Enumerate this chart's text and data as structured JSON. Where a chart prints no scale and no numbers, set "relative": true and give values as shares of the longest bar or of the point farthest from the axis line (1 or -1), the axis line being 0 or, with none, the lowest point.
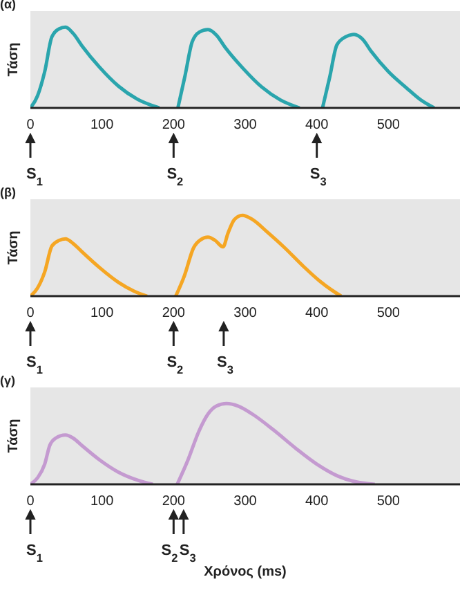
{
  "chart_data": [
    {
      "type": "line",
      "title": "(α)",
      "ylabel": "Τάση",
      "relative": true,
      "xlim": [
        0,
        600
      ],
      "xticks": [
        0,
        100,
        200,
        300,
        400,
        500
      ],
      "marker": "none",
      "line_style": "solid",
      "x": [
        0,
        10,
        20,
        30,
        40,
        49,
        60,
        72,
        97,
        123,
        149,
        180,
        193,
        206,
        216,
        226,
        236,
        248,
        260,
        272,
        297,
        323,
        349,
        376,
        392,
        408,
        418,
        428,
        440,
        452,
        464,
        476,
        500,
        525,
        545,
        564
      ],
      "series": [
        {
          "color": "#2aa5ad",
          "values": [
            0,
            0.15,
            0.45,
            0.88,
            0.98,
            1,
            0.92,
            0.77,
            0.5,
            0.27,
            0.11,
            0,
            null,
            0,
            0.4,
            0.82,
            0.94,
            0.97,
            0.9,
            0.75,
            0.49,
            0.26,
            0.1,
            0,
            null,
            0,
            0.38,
            0.78,
            0.88,
            0.91,
            0.85,
            0.7,
            0.45,
            0.25,
            0.1,
            0
          ]
        }
      ],
      "ref_lines": [
        {
          "axis": "x",
          "value": 0,
          "label": "S$_{1}$"
        },
        {
          "axis": "x",
          "value": 200,
          "label": "S$_{2}$"
        },
        {
          "axis": "x",
          "value": 400,
          "label": "S$_{3}$"
        }
      ]
    },
    {
      "type": "line",
      "title": "(β)",
      "ylabel": "Τάση",
      "relative": true,
      "xlim": [
        0,
        600
      ],
      "xticks": [
        0,
        100,
        200,
        300,
        400,
        500
      ],
      "marker": "none",
      "line_style": "solid",
      "x": [
        0,
        10,
        20,
        30,
        40,
        49,
        60,
        72,
        97,
        123,
        145,
        163,
        183,
        203,
        215,
        228,
        238,
        248,
        258,
        269,
        276,
        285,
        296,
        310,
        330,
        355,
        380,
        405,
        420,
        434
      ],
      "series": [
        {
          "color": "#f5a623",
          "values": [
            0,
            0.1,
            0.3,
            0.62,
            0.69,
            0.71,
            0.65,
            0.55,
            0.35,
            0.17,
            0.06,
            0,
            null,
            0,
            0.25,
            0.6,
            0.7,
            0.73,
            0.69,
            0.61,
            0.78,
            0.95,
            1,
            0.95,
            0.8,
            0.6,
            0.38,
            0.18,
            0.08,
            0
          ]
        }
      ],
      "ref_lines": [
        {
          "axis": "x",
          "value": 0,
          "label": "S$_{1}$"
        },
        {
          "axis": "x",
          "value": 200,
          "label": "S$_{2}$"
        },
        {
          "axis": "x",
          "value": 270,
          "label": "S$_{3}$"
        }
      ]
    },
    {
      "type": "line",
      "title": "(γ)",
      "ylabel": "Τάση",
      "xlabel": "Χρόνος (ms)",
      "relative": true,
      "xlim": [
        0,
        600
      ],
      "xticks": [
        0,
        100,
        200,
        300,
        400,
        500
      ],
      "marker": "none",
      "line_style": "solid",
      "x": [
        0,
        10,
        20,
        27,
        35,
        49,
        60,
        72,
        97,
        123,
        150,
        171,
        188,
        205,
        220,
        235,
        248,
        260,
        274,
        290,
        310,
        340,
        370,
        400,
        430,
        455,
        481
      ],
      "series": [
        {
          "color": "#c49ad0",
          "values": [
            0,
            0.08,
            0.25,
            0.48,
            0.57,
            0.61,
            0.57,
            0.48,
            0.3,
            0.15,
            0.05,
            0,
            null,
            0,
            0.3,
            0.65,
            0.87,
            0.97,
            1,
            0.97,
            0.87,
            0.67,
            0.45,
            0.25,
            0.1,
            0.03,
            0
          ]
        }
      ],
      "ref_lines": [
        {
          "axis": "x",
          "value": 0,
          "label": "S$_{1}$"
        },
        {
          "axis": "x",
          "value": 200,
          "label": "S$_{2}$"
        },
        {
          "axis": "x",
          "value": 214,
          "label": "S$_{3}$"
        }
      ]
    }
  ]
}
